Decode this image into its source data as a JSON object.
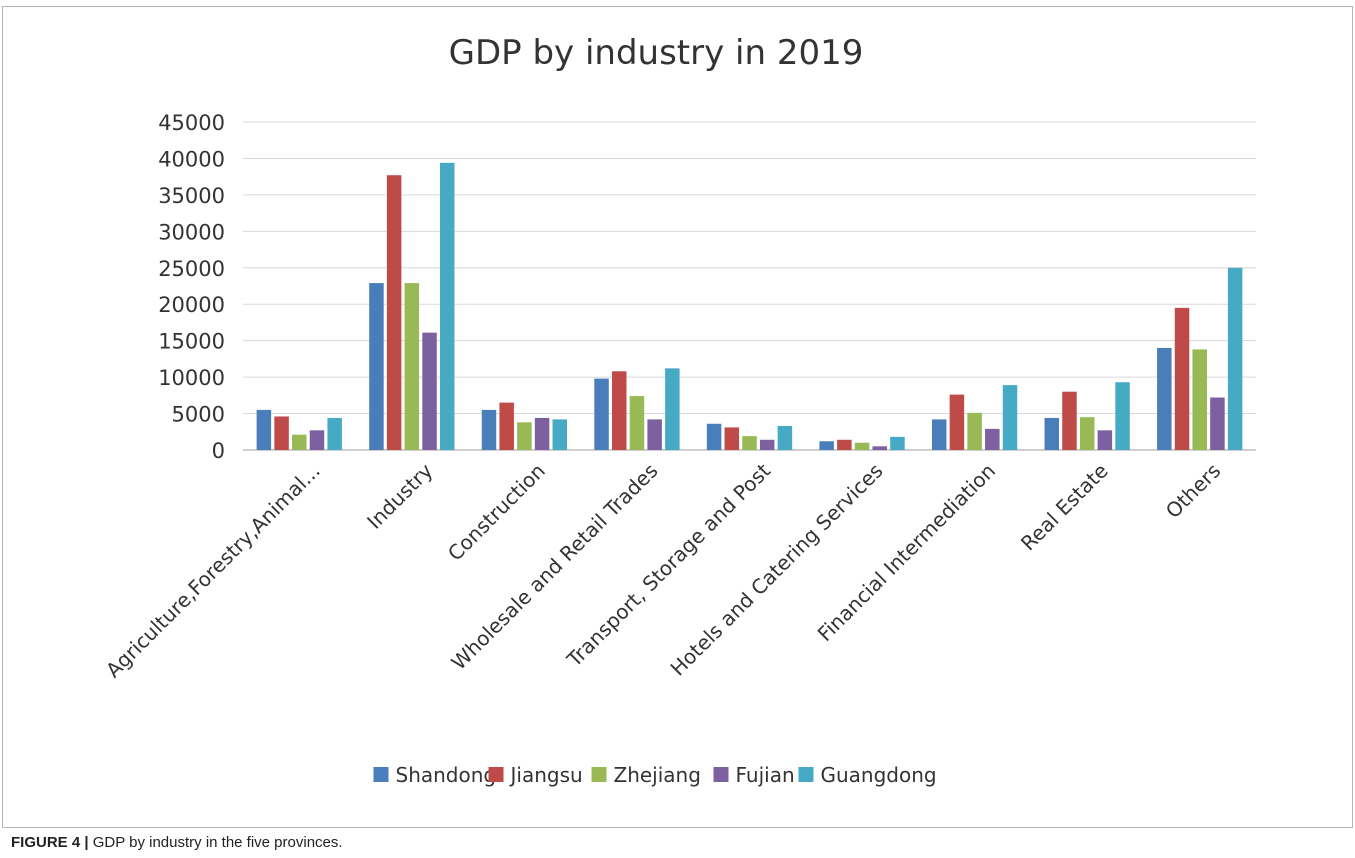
{
  "caption": {
    "label": "FIGURE 4 |",
    "text": " GDP by industry in the five provinces."
  },
  "chart_data": {
    "type": "bar",
    "title": "GDP by industry in 2019",
    "xlabel": "",
    "ylabel": "",
    "ylim": [
      0,
      45000
    ],
    "yticks": [
      0,
      5000,
      10000,
      15000,
      20000,
      25000,
      30000,
      35000,
      40000,
      45000
    ],
    "grid": true,
    "legend_position": "bottom",
    "categories": [
      "Agriculture,Forestry,Animal...",
      "Industry",
      "Construction",
      "Wholesale and Retail Trades",
      "Transport, Storage and Post",
      "Hotels and Catering Services",
      "Financial Intermediation",
      "Real Estate",
      "Others"
    ],
    "series": [
      {
        "name": "Shandong",
        "color": "#4a7ebb",
        "values": [
          5500,
          22900,
          5500,
          9800,
          3600,
          1200,
          4200,
          4400,
          14000
        ]
      },
      {
        "name": "Jiangsu",
        "color": "#be4b48",
        "values": [
          4600,
          37700,
          6500,
          10800,
          3100,
          1400,
          7600,
          8000,
          19500
        ]
      },
      {
        "name": "Zhejiang",
        "color": "#98b954",
        "values": [
          2100,
          22900,
          3800,
          7400,
          1900,
          1000,
          5100,
          4500,
          13800
        ]
      },
      {
        "name": "Fujian",
        "color": "#7d60a0",
        "values": [
          2700,
          16100,
          4400,
          4200,
          1400,
          500,
          2900,
          2700,
          7200
        ]
      },
      {
        "name": "Guangdong",
        "color": "#46aac5",
        "values": [
          4400,
          39400,
          4200,
          11200,
          3300,
          1800,
          8900,
          9300,
          25000
        ]
      }
    ]
  }
}
